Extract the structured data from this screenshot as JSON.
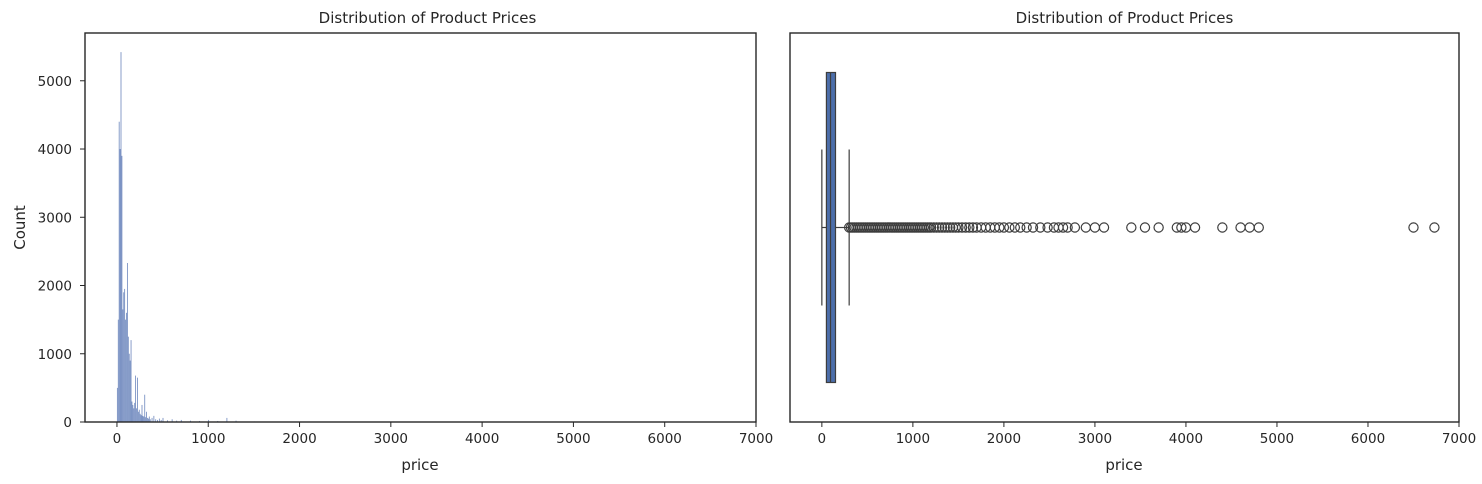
{
  "chart_data": [
    {
      "type": "bar",
      "subtype": "histogram",
      "title": "Distribution of Product Prices",
      "xlabel": "price",
      "ylabel": "Count",
      "xlim": [
        -350,
        7000
      ],
      "ylim": [
        0,
        5700
      ],
      "xticks": [
        0,
        1000,
        2000,
        3000,
        4000,
        5000,
        6000,
        7000
      ],
      "yticks": [
        0,
        1000,
        2000,
        3000,
        4000,
        5000
      ],
      "grid": false,
      "color": "#6d87bd",
      "bins": [
        {
          "x": 0,
          "y": 500
        },
        {
          "x": 10,
          "y": 1500
        },
        {
          "x": 20,
          "y": 4400
        },
        {
          "x": 30,
          "y": 4000
        },
        {
          "x": 40,
          "y": 5420
        },
        {
          "x": 50,
          "y": 3900
        },
        {
          "x": 60,
          "y": 1650
        },
        {
          "x": 70,
          "y": 1900
        },
        {
          "x": 80,
          "y": 1950
        },
        {
          "x": 90,
          "y": 1500
        },
        {
          "x": 100,
          "y": 1600
        },
        {
          "x": 110,
          "y": 2330
        },
        {
          "x": 120,
          "y": 1250
        },
        {
          "x": 130,
          "y": 1000
        },
        {
          "x": 140,
          "y": 900
        },
        {
          "x": 150,
          "y": 1200
        },
        {
          "x": 160,
          "y": 300
        },
        {
          "x": 170,
          "y": 250
        },
        {
          "x": 180,
          "y": 200
        },
        {
          "x": 190,
          "y": 280
        },
        {
          "x": 200,
          "y": 680
        },
        {
          "x": 210,
          "y": 200
        },
        {
          "x": 220,
          "y": 650
        },
        {
          "x": 230,
          "y": 150
        },
        {
          "x": 240,
          "y": 180
        },
        {
          "x": 250,
          "y": 120
        },
        {
          "x": 260,
          "y": 100
        },
        {
          "x": 270,
          "y": 250
        },
        {
          "x": 280,
          "y": 90
        },
        {
          "x": 290,
          "y": 80
        },
        {
          "x": 300,
          "y": 400
        },
        {
          "x": 310,
          "y": 70
        },
        {
          "x": 320,
          "y": 150
        },
        {
          "x": 330,
          "y": 60
        },
        {
          "x": 340,
          "y": 50
        },
        {
          "x": 350,
          "y": 80
        },
        {
          "x": 360,
          "y": 40
        },
        {
          "x": 380,
          "y": 60
        },
        {
          "x": 400,
          "y": 90
        },
        {
          "x": 420,
          "y": 40
        },
        {
          "x": 440,
          "y": 30
        },
        {
          "x": 460,
          "y": 50
        },
        {
          "x": 480,
          "y": 30
        },
        {
          "x": 500,
          "y": 60
        },
        {
          "x": 550,
          "y": 25
        },
        {
          "x": 600,
          "y": 40
        },
        {
          "x": 650,
          "y": 20
        },
        {
          "x": 700,
          "y": 30
        },
        {
          "x": 800,
          "y": 20
        },
        {
          "x": 900,
          "y": 15
        },
        {
          "x": 1000,
          "y": 30
        },
        {
          "x": 1100,
          "y": 15
        },
        {
          "x": 1200,
          "y": 60
        },
        {
          "x": 1300,
          "y": 20
        },
        {
          "x": 1500,
          "y": 8
        },
        {
          "x": 1700,
          "y": 6
        },
        {
          "x": 2000,
          "y": 5
        }
      ]
    },
    {
      "type": "box",
      "title": "Distribution of Product Prices",
      "xlabel": "price",
      "xlim": [
        -350,
        7000
      ],
      "xticks": [
        0,
        1000,
        2000,
        3000,
        4000,
        5000,
        6000,
        7000
      ],
      "grid": false,
      "color": "#4c6eaa",
      "whisker_low": 0,
      "q1": 50,
      "median": 95,
      "q3": 150,
      "whisker_high": 300,
      "outliers": [
        300,
        320,
        340,
        360,
        380,
        400,
        420,
        440,
        460,
        480,
        500,
        520,
        540,
        560,
        580,
        600,
        620,
        640,
        660,
        680,
        700,
        720,
        740,
        760,
        780,
        800,
        820,
        840,
        860,
        880,
        900,
        920,
        940,
        960,
        980,
        1000,
        1020,
        1040,
        1060,
        1080,
        1100,
        1120,
        1140,
        1160,
        1180,
        1200,
        1230,
        1260,
        1290,
        1320,
        1350,
        1380,
        1410,
        1440,
        1470,
        1500,
        1540,
        1580,
        1620,
        1660,
        1700,
        1750,
        1800,
        1850,
        1900,
        1950,
        2000,
        2060,
        2120,
        2180,
        2250,
        2320,
        2400,
        2480,
        2550,
        2600,
        2650,
        2700,
        2780,
        2900,
        3000,
        3100,
        3400,
        3550,
        3700,
        3900,
        3950,
        4000,
        4100,
        4400,
        4600,
        4700,
        4800,
        6500,
        6730
      ]
    }
  ]
}
